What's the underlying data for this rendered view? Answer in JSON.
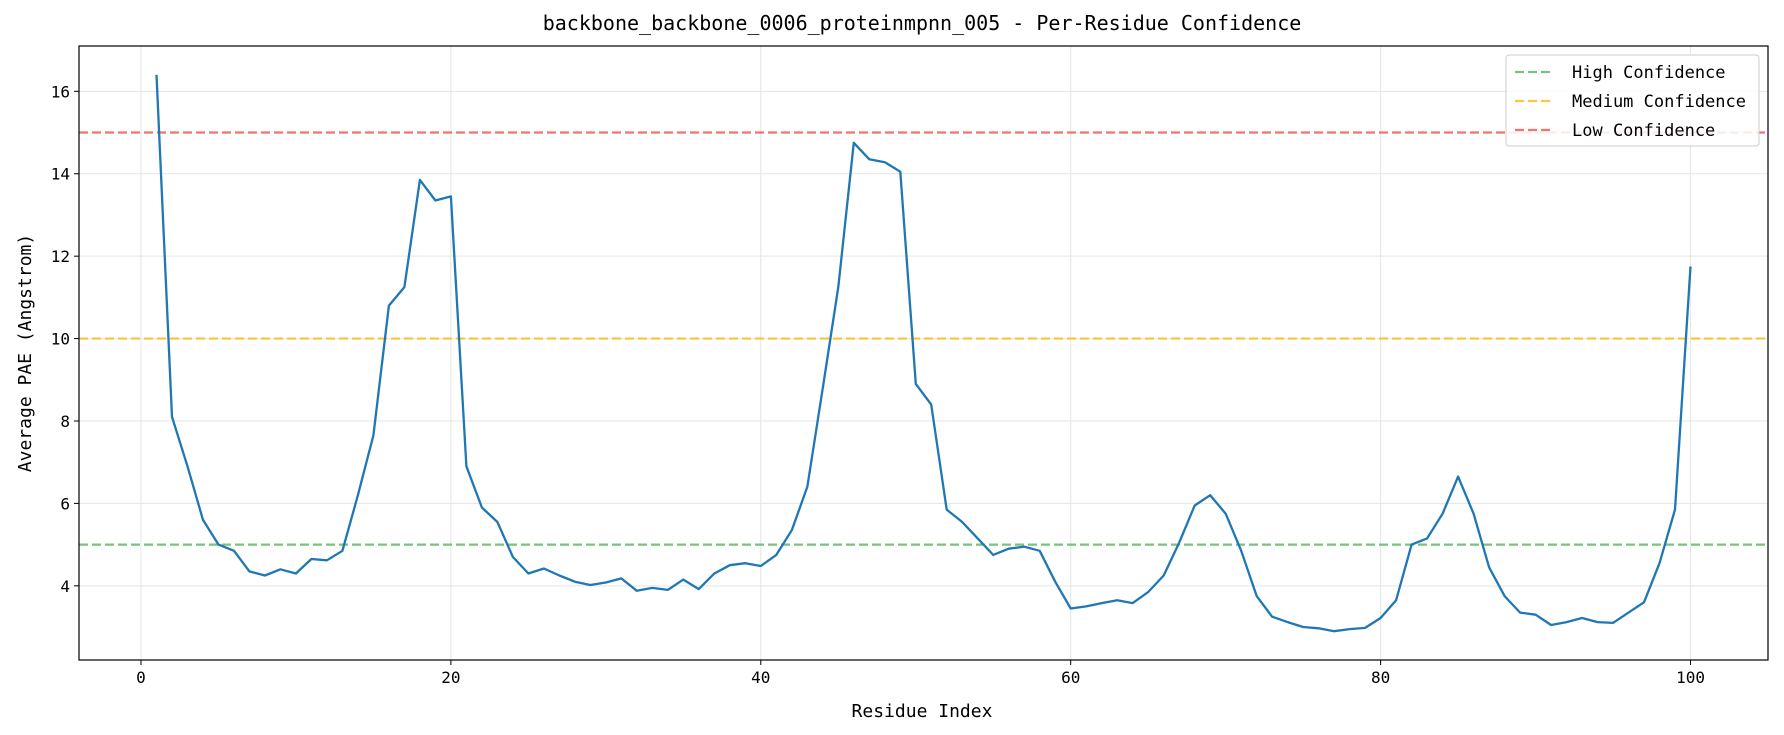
{
  "chart_data": {
    "type": "line",
    "title": "backbone_backbone_0006_proteinmpnn_005 - Per-Residue Confidence",
    "xlabel": "Residue Index",
    "ylabel": "Average PAE (Angstrom)",
    "xlim": [
      -4,
      105
    ],
    "ylim": [
      2.2,
      17.1
    ],
    "xticks": [
      0,
      20,
      40,
      60,
      80,
      100
    ],
    "yticks": [
      4,
      6,
      8,
      10,
      12,
      14,
      16
    ],
    "grid": true,
    "legend_position": "top-right",
    "series": [
      {
        "color": "#1f77b4",
        "x": [
          1,
          2,
          3,
          4,
          5,
          6,
          7,
          8,
          9,
          10,
          11,
          12,
          13,
          14,
          15,
          16,
          17,
          18,
          19,
          20,
          21,
          22,
          23,
          24,
          25,
          26,
          27,
          28,
          29,
          30,
          31,
          32,
          33,
          34,
          35,
          36,
          37,
          38,
          39,
          40,
          41,
          42,
          43,
          44,
          45,
          46,
          47,
          48,
          49,
          50,
          51,
          52,
          53,
          54,
          55,
          56,
          57,
          58,
          59,
          60,
          61,
          62,
          63,
          64,
          65,
          66,
          67,
          68,
          69,
          70,
          71,
          72,
          73,
          74,
          75,
          76,
          77,
          78,
          79,
          80,
          81,
          82,
          83,
          84,
          85,
          86,
          87,
          88,
          89,
          90,
          91,
          92,
          93,
          94,
          95,
          96,
          97,
          98,
          99,
          100
        ],
        "y": [
          16.4,
          8.1,
          6.9,
          5.6,
          5.0,
          4.85,
          4.35,
          4.25,
          4.4,
          4.3,
          4.65,
          4.62,
          4.85,
          6.2,
          7.65,
          10.8,
          11.25,
          13.85,
          13.35,
          13.45,
          6.9,
          5.9,
          5.55,
          4.7,
          4.3,
          4.42,
          4.25,
          4.1,
          4.02,
          4.08,
          4.18,
          3.88,
          3.95,
          3.9,
          4.15,
          3.92,
          4.3,
          4.5,
          4.55,
          4.48,
          4.75,
          5.35,
          6.4,
          8.8,
          11.25,
          14.75,
          14.35,
          14.28,
          14.05,
          8.9,
          8.4,
          5.85,
          5.55,
          5.15,
          4.75,
          4.9,
          4.95,
          4.85,
          4.1,
          3.45,
          3.5,
          3.58,
          3.65,
          3.58,
          3.85,
          4.25,
          5.05,
          5.95,
          6.2,
          5.75,
          4.85,
          3.75,
          3.25,
          3.12,
          3.0,
          2.97,
          2.9,
          2.95,
          2.98,
          3.22,
          3.65,
          5.0,
          5.15,
          5.75,
          6.65,
          5.75,
          4.45,
          3.75,
          3.35,
          3.3,
          3.05,
          3.12,
          3.22,
          3.12,
          3.1,
          3.35,
          3.6,
          4.55,
          5.85,
          11.75
        ]
      }
    ],
    "reference_lines": [
      {
        "name": "High Confidence",
        "y": 5,
        "color": "#4caf50"
      },
      {
        "name": "Medium Confidence",
        "y": 10,
        "color": "#ffb300"
      },
      {
        "name": "Low Confidence",
        "y": 15,
        "color": "#f44336"
      }
    ]
  }
}
